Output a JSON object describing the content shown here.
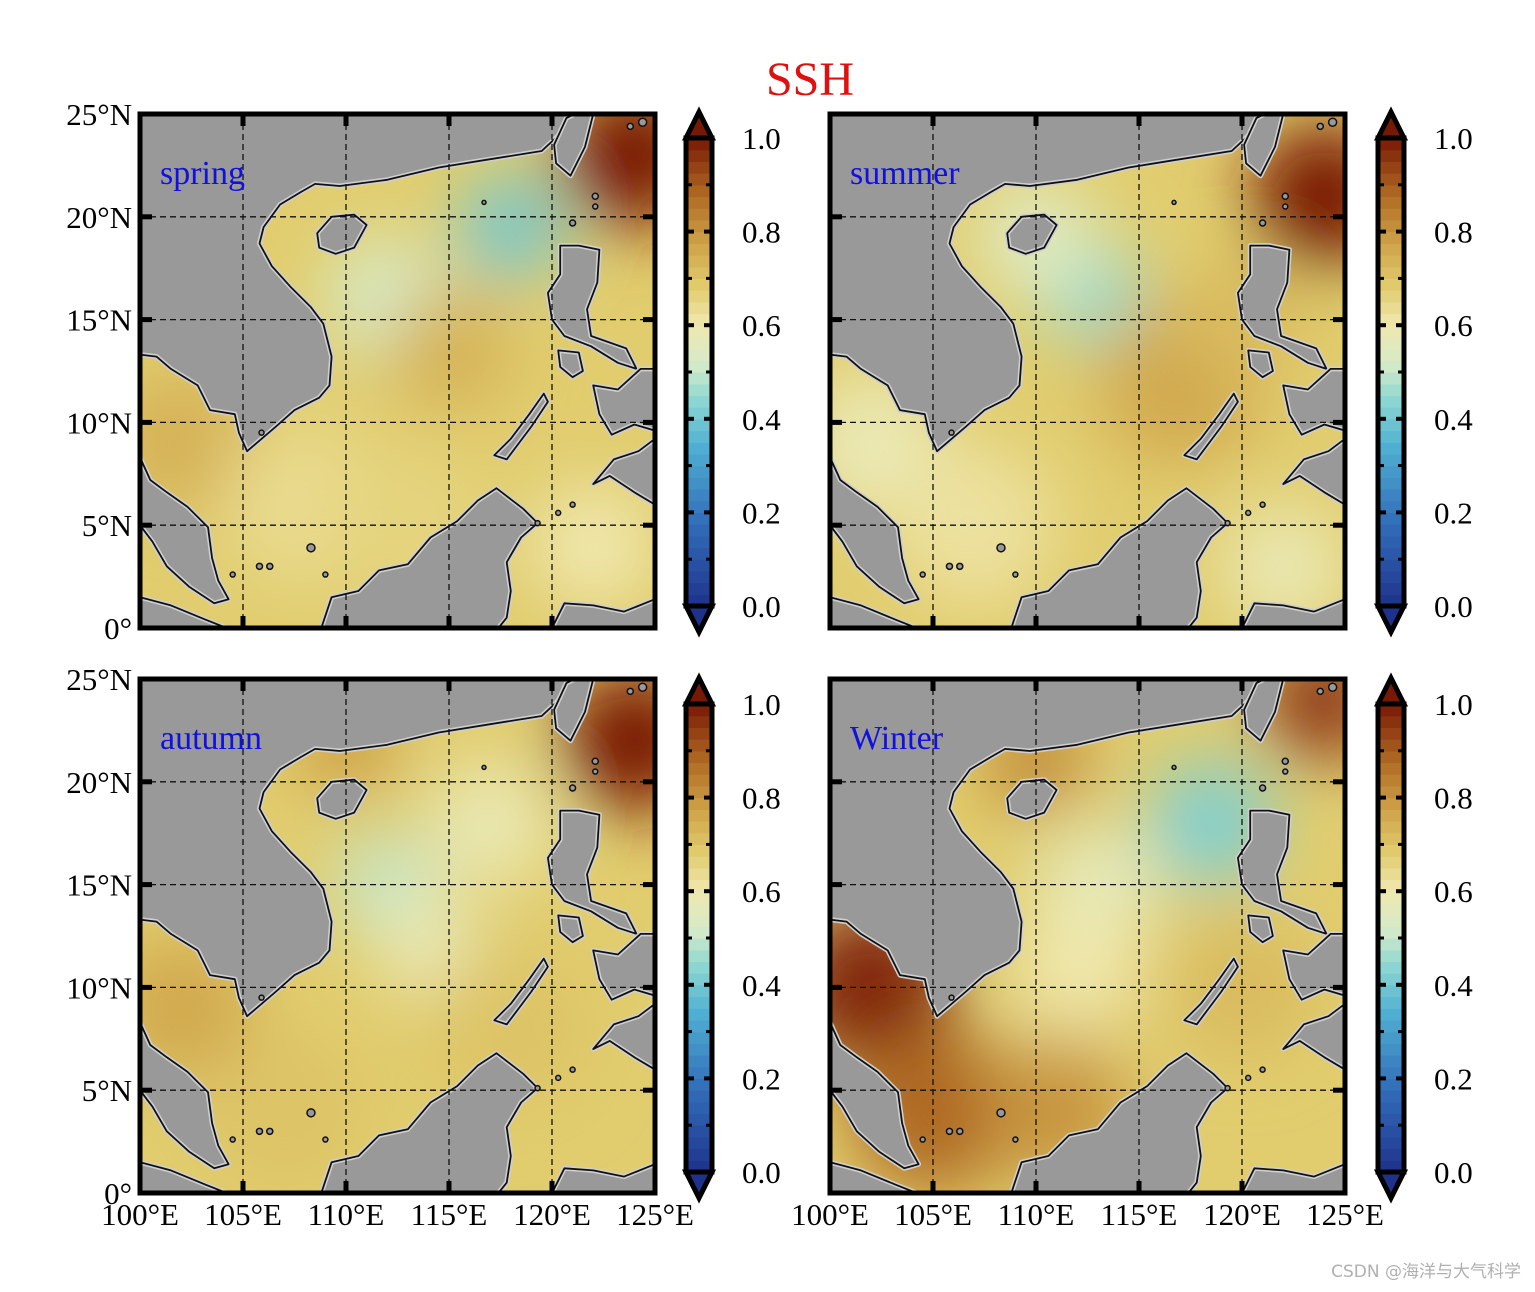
{
  "title": "SSH",
  "watermark": "CSDN @海洋与大气科学",
  "colors": {
    "land": "#999999",
    "coast": "#111111",
    "seasonLabel": "#1010e0",
    "title": "#e01010"
  },
  "map_axes": {
    "lon_ticks": [
      "100°E",
      "105°E",
      "110°E",
      "115°E",
      "120°E",
      "125°E"
    ],
    "lat_ticks": [
      "0°",
      "5°N",
      "10°N",
      "15°N",
      "20°N",
      "25°N"
    ],
    "lon_range": [
      100,
      125
    ],
    "lat_range": [
      0,
      25
    ],
    "grid": "dashed"
  },
  "colorbar": {
    "ticks": [
      "0.0",
      "0.2",
      "0.4",
      "0.6",
      "0.8",
      "1.0"
    ],
    "range": [
      0.0,
      1.0
    ],
    "extend": "both",
    "colormap": "blue-cream-brown"
  },
  "panels": [
    {
      "label": "spring",
      "lon_ticks_shown": false,
      "lat_ticks_shown": true
    },
    {
      "label": "summer",
      "lon_ticks_shown": false,
      "lat_ticks_shown": false
    },
    {
      "label": "autumn",
      "lon_ticks_shown": true,
      "lat_ticks_shown": true
    },
    {
      "label": "Winter",
      "lon_ticks_shown": true,
      "lat_ticks_shown": false
    }
  ]
}
